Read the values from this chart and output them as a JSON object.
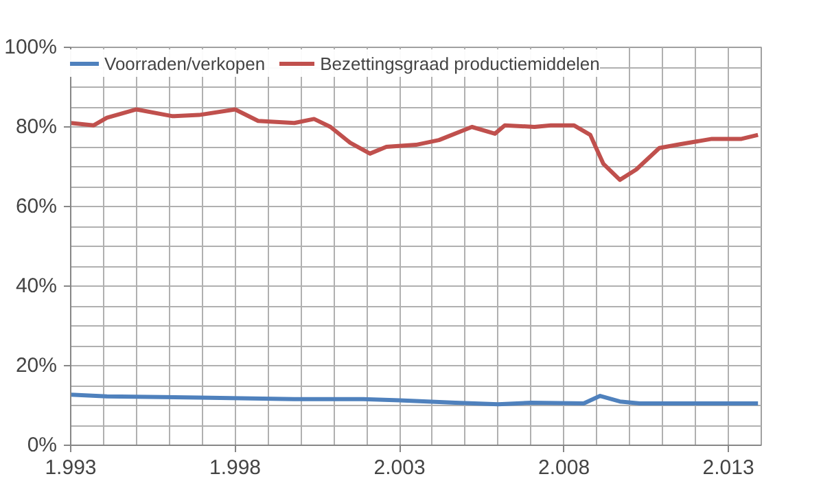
{
  "chart_data": {
    "type": "line",
    "legend": "top",
    "grid": true,
    "marker": "none",
    "line_style": "solid",
    "xlim": [
      1993,
      2014
    ],
    "xticks": [
      {
        "value": 1993,
        "label": "1.993"
      },
      {
        "value": 1998,
        "label": "1.998"
      },
      {
        "value": 2003,
        "label": "2.003"
      },
      {
        "value": 2008,
        "label": "2.008"
      },
      {
        "value": 2013,
        "label": "2.013"
      }
    ],
    "ylim": [
      0,
      100
    ],
    "yticks": [
      {
        "value": 0,
        "label": "0%"
      },
      {
        "value": 20,
        "label": "20%"
      },
      {
        "value": 40,
        "label": "40%"
      },
      {
        "value": 60,
        "label": "60%"
      },
      {
        "value": 80,
        "label": "80%"
      },
      {
        "value": 100,
        "label": "100%"
      }
    ],
    "series": [
      {
        "name": "Voorraden/verkopen",
        "color": "#4f81bd",
        "x": [
          1993,
          1994.1,
          1996.9,
          1999.8,
          2001.9,
          2003.0,
          2004.7,
          2006.0,
          2007.0,
          2008.6,
          2009.1,
          2009.7,
          2010.3,
          2013.9
        ],
        "values": [
          12.7,
          12.3,
          12.0,
          11.6,
          11.6,
          11.3,
          10.7,
          10.3,
          10.7,
          10.5,
          12.4,
          11.0,
          10.5,
          10.5
        ]
      },
      {
        "name": "Bezettingsgraad productiemiddelen",
        "color": "#c0504d",
        "x": [
          1993,
          1993.7,
          1994.1,
          1995.0,
          1996.1,
          1996.9,
          1998.0,
          1998.7,
          1999.8,
          2000.4,
          2000.9,
          2001.5,
          2002.1,
          2002.6,
          2003.5,
          2004.2,
          2005.2,
          2005.9,
          2006.2,
          2007.1,
          2007.6,
          2008.3,
          2008.8,
          2009.0,
          2009.2,
          2009.7,
          2010.2,
          2010.9,
          2011.5,
          2012.5,
          2013.4,
          2013.9
        ],
        "values": [
          81,
          80.4,
          82.3,
          84.4,
          82.7,
          83,
          84.4,
          81.5,
          81,
          82,
          80,
          76,
          73.3,
          75,
          75.5,
          76.7,
          80,
          78.3,
          80.4,
          80,
          80.4,
          80.4,
          78,
          74.3,
          70.7,
          66.7,
          69.3,
          74.7,
          75.6,
          77,
          77,
          78
        ]
      }
    ]
  }
}
